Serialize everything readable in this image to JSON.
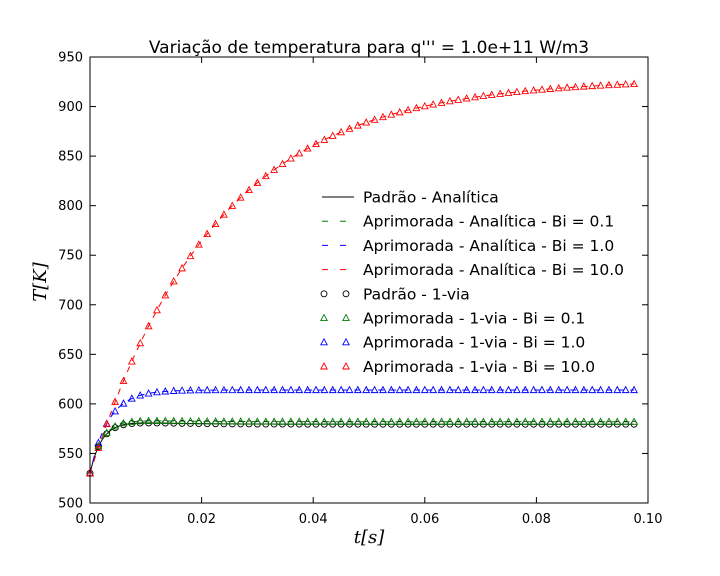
{
  "chart_data": {
    "type": "line",
    "title": "Variação de temperatura para q''' = 1.0e+11 W/m3",
    "xlabel": "t[s]",
    "ylabel": "T[K]",
    "xlim": [
      0.0,
      0.1
    ],
    "ylim": [
      500,
      950
    ],
    "xticks": [
      0.0,
      0.02,
      0.04,
      0.06,
      0.08,
      0.1
    ],
    "xtick_labels": [
      "0.00",
      "0.02",
      "0.04",
      "0.06",
      "0.08",
      "0.10"
    ],
    "yticks": [
      500,
      550,
      600,
      650,
      700,
      750,
      800,
      850,
      900,
      950
    ],
    "yticks_labels": [
      "500",
      "550",
      "600",
      "650",
      "700",
      "750",
      "800",
      "850",
      "900",
      "950"
    ],
    "grid": false,
    "legend_position": "center-right",
    "x_step": 0.0015,
    "x_count": 66,
    "lines": [
      {
        "name": "Padrão - Analítica",
        "style": "solid",
        "color": "#000000",
        "T0": 530,
        "Tinf": 579.5,
        "tau": 0.0022,
        "overshoot": 5.5,
        "tau2": 0.009
      },
      {
        "name": "Aprimorada - Analítica - Bi = 0.1",
        "style": "dashed",
        "color": "#008000",
        "T0": 530,
        "Tinf": 582,
        "tau": 0.0022,
        "overshoot": 4.0,
        "tau2": 0.009
      },
      {
        "name": "Aprimorada - Analítica - Bi = 1.0",
        "style": "dashed",
        "color": "#0000ff",
        "T0": 530,
        "Tinf": 614,
        "tau": 0.0033,
        "overshoot": 0,
        "tau2": 0.01
      },
      {
        "name": "Aprimorada - Analítica - Bi = 10.0",
        "style": "dashed",
        "color": "#ff0000",
        "T0": 530,
        "Tinf": 928,
        "tau": 0.0225,
        "overshoot": 0,
        "tau2": 0.01
      }
    ],
    "markers": [
      {
        "name": "Padrão - 1-via",
        "marker": "circle",
        "color": "#000000",
        "T0": 530,
        "Tinf": 579.5,
        "tau": 0.0022,
        "overshoot": 5.5,
        "tau2": 0.009
      },
      {
        "name": "Aprimorada - 1-via - Bi = 0.1",
        "marker": "triangle",
        "color": "#008000",
        "T0": 530,
        "Tinf": 582,
        "tau": 0.0022,
        "overshoot": 4.0,
        "tau2": 0.009
      },
      {
        "name": "Aprimorada - 1-via - Bi = 1.0",
        "marker": "triangle",
        "color": "#0000ff",
        "T0": 530,
        "Tinf": 614,
        "tau": 0.0033,
        "overshoot": 0,
        "tau2": 0.01
      },
      {
        "name": "Aprimorada - 1-via - Bi = 10.0",
        "marker": "triangle",
        "color": "#ff0000",
        "T0": 530,
        "Tinf": 928,
        "tau": 0.0225,
        "overshoot": 0,
        "tau2": 0.01
      }
    ]
  }
}
